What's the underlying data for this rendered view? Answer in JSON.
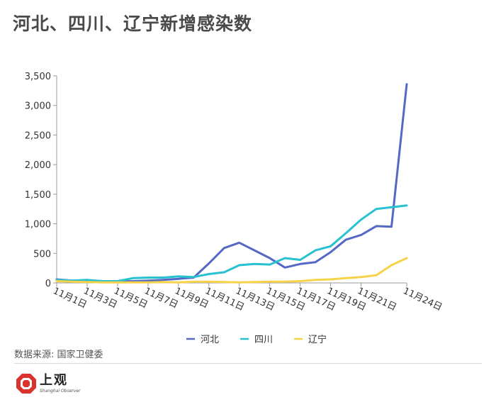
{
  "title": "河北、四川、辽宁新增感染数",
  "source": "数据来源: 国家卫健委",
  "brand": {
    "name": "上观",
    "sub": "Shanghai Observer"
  },
  "colors": {
    "hebei": "#5468c4",
    "sichuan": "#27c1d0",
    "liaoning": "#f6d34a",
    "axis": "#9a9a9a",
    "tick_text": "#333333"
  },
  "chart_data": {
    "type": "line",
    "x": [
      "11月1日",
      "11月2日",
      "11月3日",
      "11月4日",
      "11月5日",
      "11月6日",
      "11月7日",
      "11月8日",
      "11月9日",
      "11月10日",
      "11月11日",
      "11月12日",
      "11月13日",
      "11月14日",
      "11月15日",
      "11月16日",
      "11月17日",
      "11月18日",
      "11月19日",
      "11月20日",
      "11月21日",
      "11月22日",
      "11月23日",
      "11月24日"
    ],
    "x_tick_labels": [
      "11月1日",
      "11月3日",
      "11月5日",
      "11月7日",
      "11月9日",
      "11月11日",
      "11月13日",
      "11月15日",
      "11月17日",
      "11月19日",
      "11月21日",
      "11月24日"
    ],
    "x_tick_indices": [
      0,
      2,
      4,
      6,
      8,
      10,
      12,
      14,
      16,
      18,
      20,
      23
    ],
    "ylim": [
      0,
      3500
    ],
    "y_ticks": [
      0,
      500,
      1000,
      1500,
      2000,
      2500,
      3000,
      3500
    ],
    "y_tick_labels": [
      "0",
      "500",
      "1,000",
      "1,500",
      "2,000",
      "2,500",
      "3,000",
      "3,500"
    ],
    "legend_position": "bottom-center",
    "grid": false,
    "series": [
      {
        "name": "河北",
        "color": "#5468c4",
        "values": [
          60,
          40,
          40,
          30,
          25,
          30,
          40,
          50,
          70,
          90,
          330,
          590,
          680,
          550,
          420,
          260,
          320,
          350,
          520,
          730,
          810,
          960,
          950,
          3360
        ]
      },
      {
        "name": "四川",
        "color": "#27c1d0",
        "values": [
          50,
          40,
          50,
          30,
          30,
          80,
          90,
          90,
          110,
          100,
          150,
          180,
          300,
          320,
          310,
          420,
          390,
          550,
          620,
          840,
          1070,
          1250,
          1280,
          1310
        ]
      },
      {
        "name": "辽宁",
        "color": "#f6d34a",
        "values": [
          30,
          20,
          15,
          10,
          10,
          10,
          10,
          15,
          10,
          20,
          20,
          15,
          10,
          15,
          20,
          20,
          30,
          50,
          60,
          80,
          100,
          130,
          300,
          420
        ]
      }
    ]
  }
}
